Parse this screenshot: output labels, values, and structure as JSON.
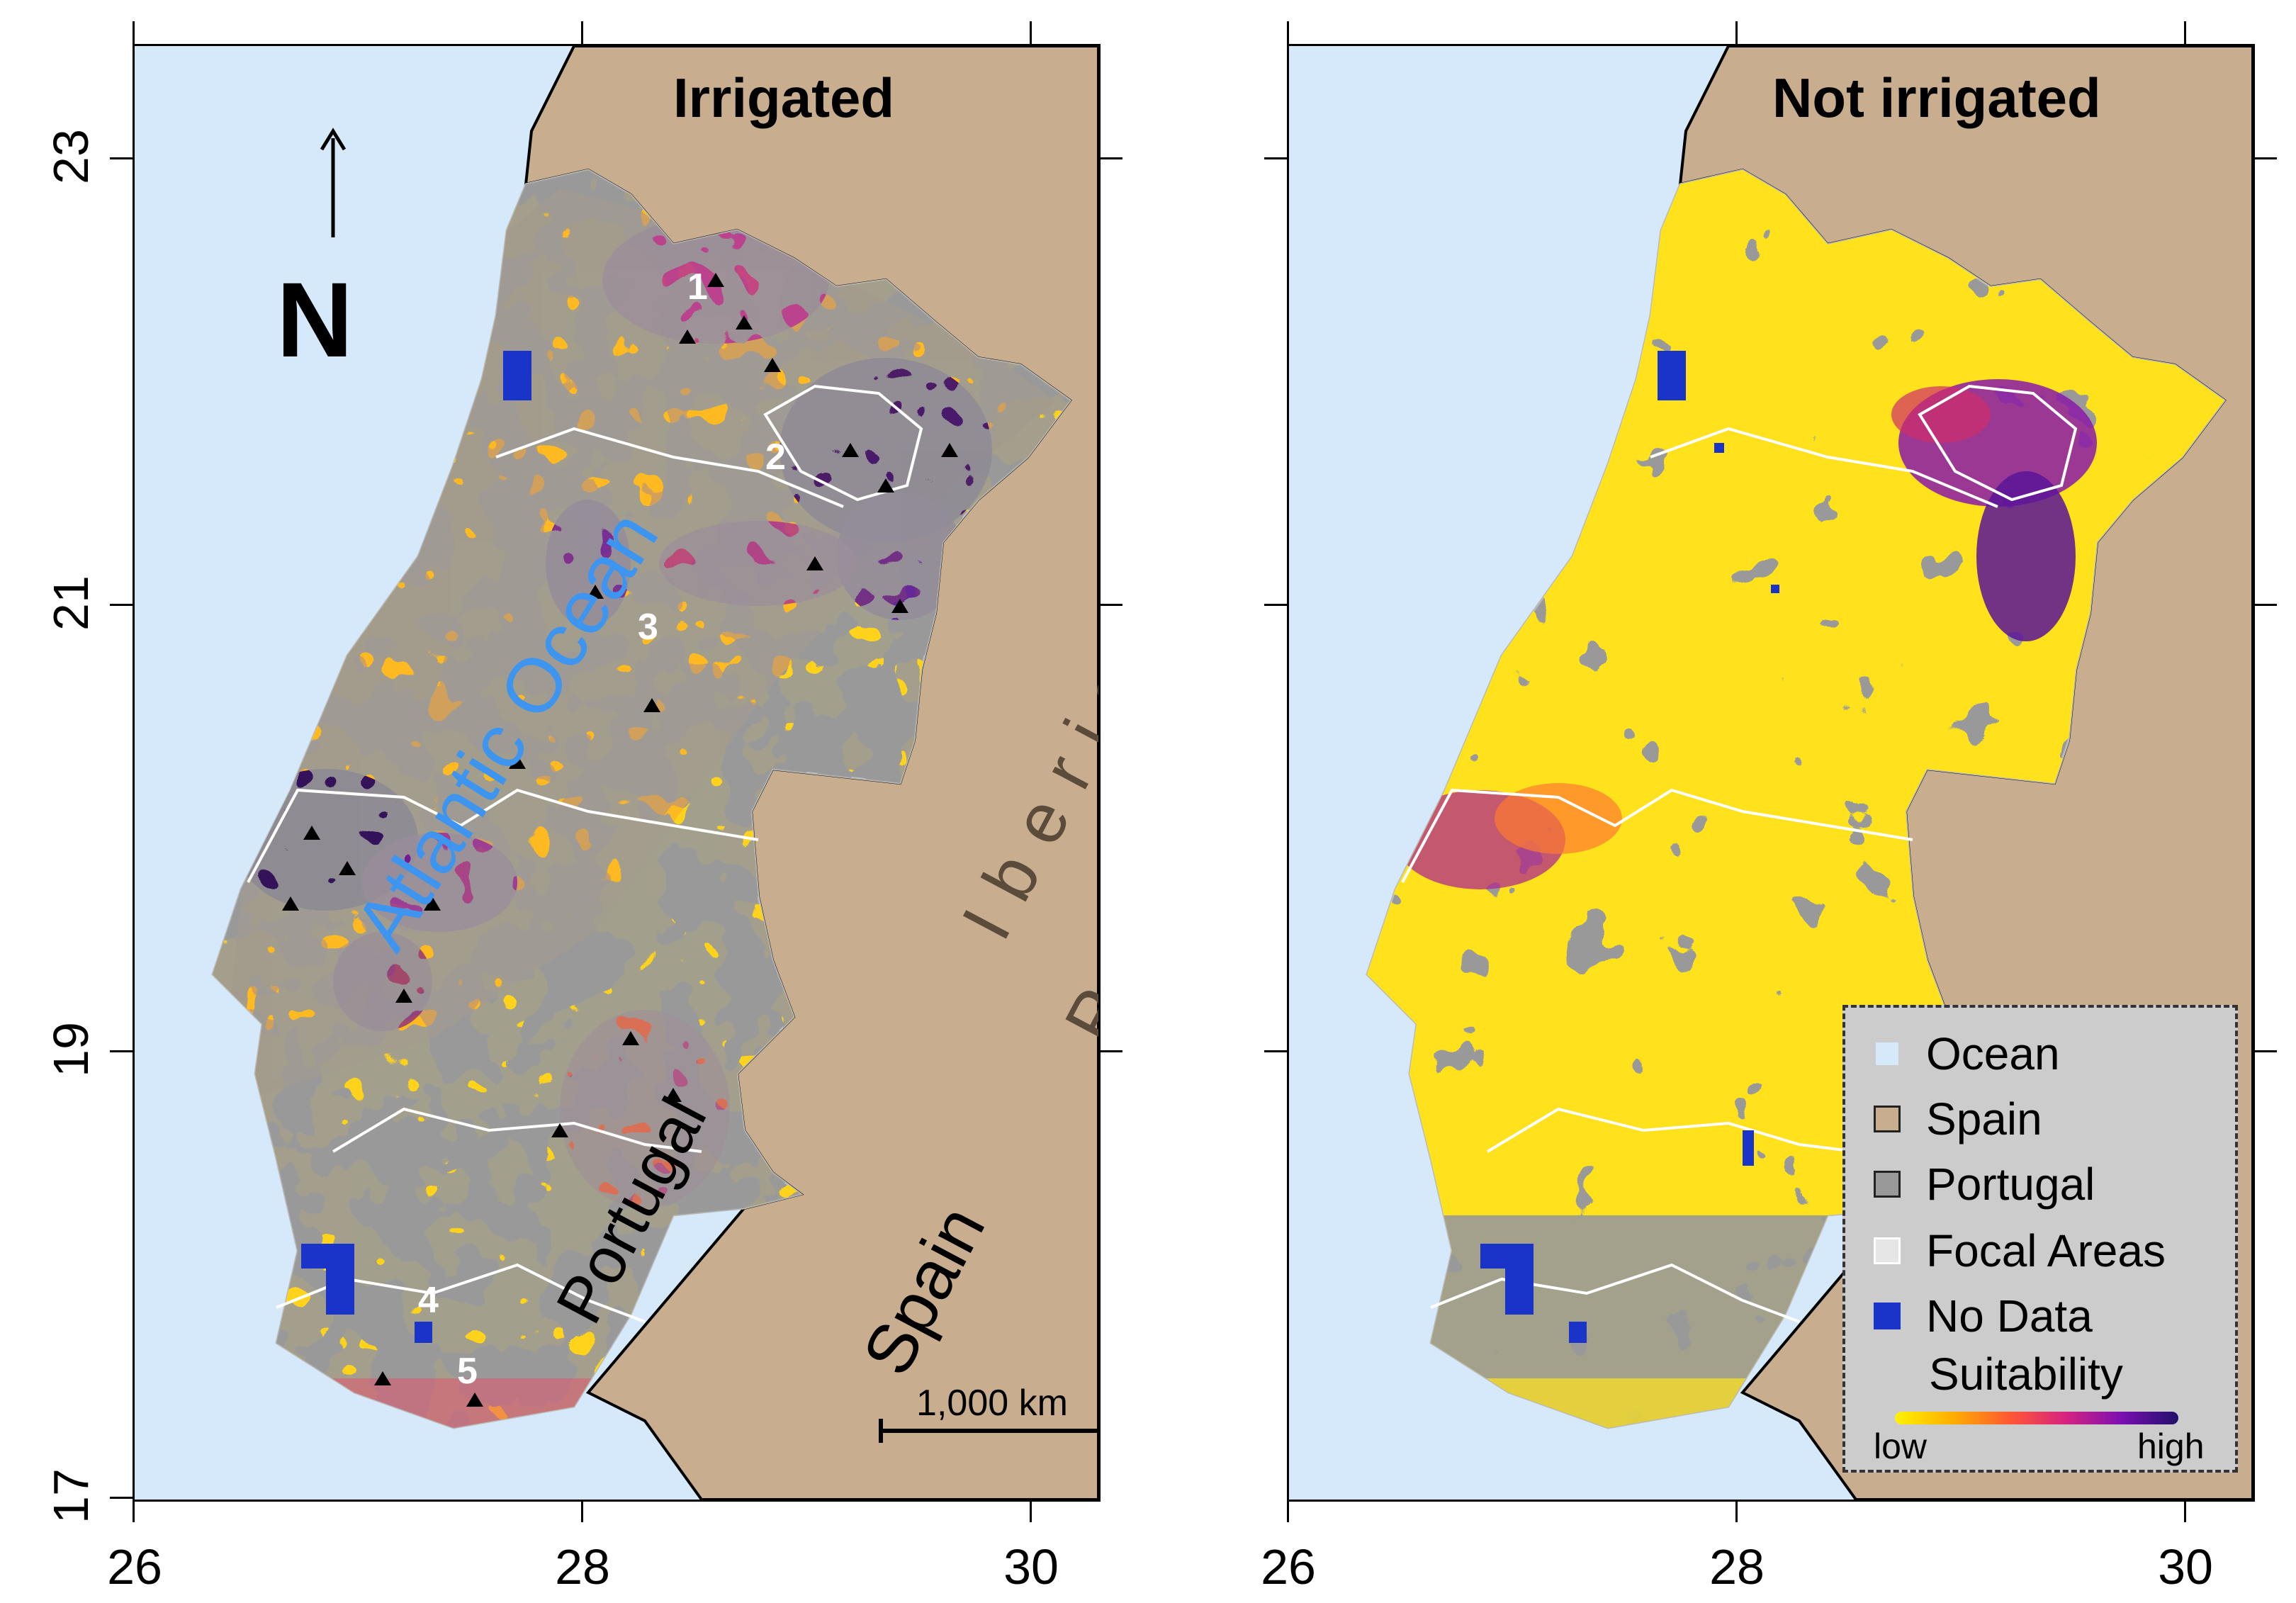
{
  "panels": {
    "left": {
      "title": "Irrigated"
    },
    "right": {
      "title": "Not irrigated"
    }
  },
  "axes": {
    "x_ticks": [
      "26",
      "28",
      "30"
    ],
    "y_ticks": [
      "23",
      "21",
      "19",
      "17"
    ]
  },
  "map_labels": {
    "ocean": "Atlantic Ocean",
    "country": "Portugal",
    "neighbor": "Spain",
    "peninsula_line1": "Iberian",
    "peninsula_line2": "Peninsula",
    "north": "N"
  },
  "focal_area_numbers": [
    "1",
    "2",
    "3",
    "4",
    "5"
  ],
  "scale_bar": {
    "label": "1,000 km"
  },
  "legend": {
    "items": [
      {
        "label": "Ocean",
        "color": "#d6e9fb"
      },
      {
        "label": "Spain",
        "color": "#c8ae8f"
      },
      {
        "label": "Portugal",
        "color": "#999999"
      },
      {
        "label": "Focal Areas",
        "color": "#e6e6e6"
      },
      {
        "label": "No Data",
        "color": "#1a33c8"
      }
    ],
    "suitability_title": "Suitability",
    "low_label": "low",
    "high_label": "high",
    "gradient_colors": [
      "#fff200",
      "#ffb000",
      "#ff5a30",
      "#d8237e",
      "#7a0fb0",
      "#1f0f6a"
    ]
  },
  "colors": {
    "ocean": "#d6e9fb",
    "spain": "#c8ae8f",
    "portugal_land": "#999999",
    "no_data": "#1a33c8",
    "ocean_label": "#3d95f0"
  }
}
